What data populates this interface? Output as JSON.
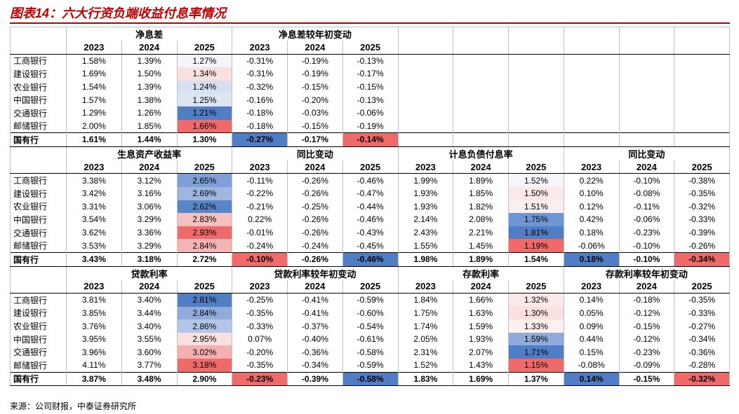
{
  "title": "图表14：六大行资负端收益付息率情况",
  "source": "来源：公司财报，中泰证券研究所",
  "banks": [
    "工商银行",
    "建设银行",
    "农业银行",
    "中国银行",
    "交通银行",
    "邮储银行"
  ],
  "total_label": "国有行",
  "years": [
    "2023",
    "2024",
    "2025"
  ],
  "blocks": [
    {
      "groups": [
        {
          "title": "净息差",
          "rows": [
            [
              "1.58%",
              "1.39%",
              "1.27%"
            ],
            [
              "1.69%",
              "1.50%",
              "1.34%"
            ],
            [
              "1.54%",
              "1.39%",
              "1.24%"
            ],
            [
              "1.57%",
              "1.38%",
              "1.25%"
            ],
            [
              "1.29%",
              "1.26%",
              "1.21%"
            ],
            [
              "2.00%",
              "1.85%",
              "1.66%"
            ]
          ],
          "total": [
            "1.61%",
            "1.44%",
            "1.30%"
          ],
          "bank_bg": [
            "#f4f4f9",
            "#fbe0e0",
            "#d6e0f0",
            "#dde5f2",
            "#4f7ec4",
            "#f06a6a"
          ]
        },
        {
          "title": "净息差较年初变动",
          "rows": [
            [
              "-0.31%",
              "-0.19%",
              "-0.13%"
            ],
            [
              "-0.31%",
              "-0.19%",
              "-0.17%"
            ],
            [
              "-0.32%",
              "-0.15%",
              "-0.15%"
            ],
            [
              "-0.16%",
              "-0.20%",
              "-0.13%"
            ],
            [
              "-0.18%",
              "-0.03%",
              "-0.06%"
            ],
            [
              "-0.18%",
              "-0.15%",
              "-0.19%"
            ]
          ],
          "total": [
            "-0.27%",
            "-0.17%",
            "-0.14%"
          ],
          "total_bg": [
            "#4f7ec4",
            null,
            "#f06a6a"
          ]
        }
      ]
    },
    {
      "groups": [
        {
          "title": "生息资产收益率",
          "rows": [
            [
              "3.38%",
              "3.12%",
              "2.65%"
            ],
            [
              "3.42%",
              "3.16%",
              "2.69%"
            ],
            [
              "3.31%",
              "3.06%",
              "2.62%"
            ],
            [
              "3.54%",
              "3.29%",
              "2.83%"
            ],
            [
              "3.62%",
              "3.36%",
              "2.93%"
            ],
            [
              "3.53%",
              "3.29%",
              "2.84%"
            ]
          ],
          "total": [
            "3.43%",
            "3.18%",
            "2.72%"
          ],
          "bank_bg": [
            "#7fa0d6",
            "#9fb7e0",
            "#5a86c8",
            "#f7c0c0",
            "#f06a6a",
            "#f5b5b5"
          ]
        },
        {
          "title": "同比变动",
          "rows": [
            [
              "-0.11%",
              "-0.26%",
              "-0.46%"
            ],
            [
              "-0.22%",
              "-0.26%",
              "-0.47%"
            ],
            [
              "-0.21%",
              "-0.25%",
              "-0.44%"
            ],
            [
              "0.22%",
              "-0.26%",
              "-0.46%"
            ],
            [
              "-0.01%",
              "-0.26%",
              "-0.43%"
            ],
            [
              "-0.24%",
              "-0.24%",
              "-0.45%"
            ]
          ],
          "total": [
            "-0.10%",
            "-0.26%",
            "-0.46%"
          ],
          "total_bg": [
            "#f06a6a",
            null,
            "#4f7ec4"
          ]
        },
        {
          "title": "计息负债付息率",
          "rows": [
            [
              "1.99%",
              "1.89%",
              "1.52%"
            ],
            [
              "1.93%",
              "1.85%",
              "1.50%"
            ],
            [
              "1.93%",
              "1.82%",
              "1.51%"
            ],
            [
              "2.14%",
              "2.08%",
              "1.75%"
            ],
            [
              "2.43%",
              "2.21%",
              "1.81%"
            ],
            [
              "1.55%",
              "1.45%",
              "1.19%"
            ]
          ],
          "total": [
            "1.98%",
            "1.89%",
            "1.54%"
          ],
          "bank_bg": [
            "#f5f5fa",
            "#fbe8e8",
            "#f8f0f0",
            "#6f95d2",
            "#4f7ec4",
            "#f06a6a"
          ]
        },
        {
          "title": "同比变动",
          "rows": [
            [
              "0.22%",
              "-0.10%",
              "-0.38%"
            ],
            [
              "0.10%",
              "-0.08%",
              "-0.35%"
            ],
            [
              "0.12%",
              "-0.11%",
              "-0.32%"
            ],
            [
              "0.42%",
              "-0.06%",
              "-0.33%"
            ],
            [
              "0.18%",
              "-0.23%",
              "-0.39%"
            ],
            [
              "-0.06%",
              "-0.10%",
              "-0.26%"
            ]
          ],
          "total": [
            "0.18%",
            "-0.10%",
            "-0.34%"
          ],
          "total_bg": [
            "#4f7ec4",
            null,
            "#f06a6a"
          ]
        }
      ]
    },
    {
      "groups": [
        {
          "title": "贷款利率",
          "rows": [
            [
              "3.81%",
              "3.40%",
              "2.81%"
            ],
            [
              "3.85%",
              "3.44%",
              "2.84%"
            ],
            [
              "3.76%",
              "3.40%",
              "2.86%"
            ],
            [
              "3.95%",
              "3.55%",
              "2.95%"
            ],
            [
              "3.96%",
              "3.60%",
              "3.02%"
            ],
            [
              "4.11%",
              "3.77%",
              "3.18%"
            ]
          ],
          "total": [
            "3.87%",
            "3.48%",
            "2.90%"
          ],
          "bank_bg": [
            "#4f7ec4",
            "#8fabdc",
            "#b3c6e8",
            "#fbe0e0",
            "#f5b0b0",
            "#f06a6a"
          ]
        },
        {
          "title": "贷款利率较年初变动",
          "rows": [
            [
              "-0.25%",
              "-0.41%",
              "-0.59%"
            ],
            [
              "-0.35%",
              "-0.41%",
              "-0.60%"
            ],
            [
              "-0.33%",
              "-0.37%",
              "-0.54%"
            ],
            [
              "0.07%",
              "-0.40%",
              "-0.61%"
            ],
            [
              "-0.20%",
              "-0.36%",
              "-0.58%"
            ],
            [
              "-0.35%",
              "-0.34%",
              "-0.59%"
            ]
          ],
          "total": [
            "-0.23%",
            "-0.39%",
            "-0.58%"
          ],
          "total_bg": [
            "#f06a6a",
            null,
            "#4f7ec4"
          ]
        },
        {
          "title": "存款利率",
          "rows": [
            [
              "1.84%",
              "1.66%",
              "1.32%"
            ],
            [
              "1.75%",
              "1.63%",
              "1.30%"
            ],
            [
              "1.74%",
              "1.59%",
              "1.33%"
            ],
            [
              "2.05%",
              "1.93%",
              "1.59%"
            ],
            [
              "2.31%",
              "2.07%",
              "1.71%"
            ],
            [
              "1.52%",
              "1.43%",
              "1.15%"
            ]
          ],
          "total": [
            "1.83%",
            "1.69%",
            "1.37%"
          ],
          "bank_bg": [
            "#fbe8e8",
            "#fbe0e0",
            "#fcefef",
            "#8fabdc",
            "#4f7ec4",
            "#f06a6a"
          ]
        },
        {
          "title": "存款利率较年初变动",
          "rows": [
            [
              "0.14%",
              "-0.18%",
              "-0.35%"
            ],
            [
              "0.05%",
              "-0.12%",
              "-0.33%"
            ],
            [
              "0.09%",
              "-0.15%",
              "-0.27%"
            ],
            [
              "0.44%",
              "-0.12%",
              "-0.34%"
            ],
            [
              "0.15%",
              "-0.23%",
              "-0.36%"
            ],
            [
              "-0.08%",
              "-0.09%",
              "-0.28%"
            ]
          ],
          "total": [
            "0.14%",
            "-0.15%",
            "-0.32%"
          ],
          "total_bg": [
            "#4f7ec4",
            null,
            "#f06a6a"
          ]
        }
      ]
    }
  ]
}
